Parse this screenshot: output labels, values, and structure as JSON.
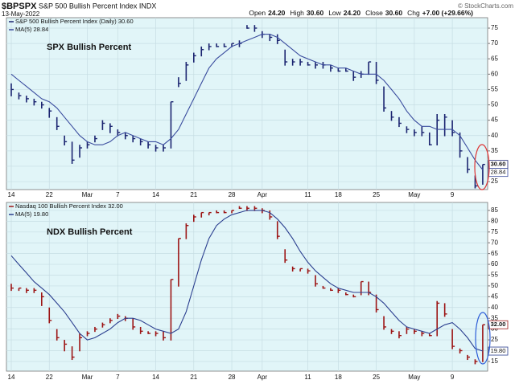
{
  "header": {
    "symbol": "$BPSPX",
    "description": "S&P 500 Bullish Percent Index INDX",
    "date": "13-May-2022",
    "credit": "© StockCharts.com",
    "quote": [
      {
        "label": "Open",
        "value": "24.20"
      },
      {
        "label": "High",
        "value": "30.60"
      },
      {
        "label": "Low",
        "value": "24.20"
      },
      {
        "label": "Close",
        "value": "30.60"
      },
      {
        "label": "Chg",
        "value": "+7.00 (+29.66%)"
      }
    ]
  },
  "chart_data": [
    {
      "type": "ohlc",
      "annotation": "SPX Bullish Percent",
      "annotation_color": "#1c3fd0",
      "background": "#e1f5f8",
      "grid": true,
      "categories": [
        "14",
        null,
        null,
        null,
        null,
        "22",
        null,
        null,
        null,
        null,
        "Mar",
        null,
        null,
        null,
        "7",
        null,
        null,
        null,
        null,
        "14",
        null,
        null,
        null,
        null,
        "21",
        null,
        null,
        null,
        null,
        "28",
        null,
        null,
        null,
        "Apr",
        null,
        null,
        null,
        null,
        null,
        "11",
        null,
        null,
        null,
        "18",
        null,
        null,
        null,
        null,
        "25",
        null,
        null,
        null,
        null,
        "May",
        null,
        null,
        null,
        null,
        "9",
        null,
        null,
        null,
        null
      ],
      "ylim": [
        22.4,
        78.4
      ],
      "yticks": [
        25,
        30,
        35,
        40,
        45,
        50,
        55,
        60,
        65,
        70,
        75
      ],
      "series": [
        {
          "name": "S&P 500 Bullish Percent Index (Daily) 30.60",
          "color": "#1b2470",
          "last_label": "30.60",
          "high": [
            57,
            54,
            53,
            52,
            51,
            49,
            46,
            40,
            38,
            37,
            38,
            40,
            45,
            44,
            42,
            41,
            40,
            39,
            38,
            37,
            37,
            51,
            59,
            64,
            67,
            69,
            70,
            70,
            70,
            70,
            71,
            76,
            76,
            74,
            73,
            73,
            68,
            65,
            65,
            64,
            64,
            64,
            63,
            62,
            62,
            61,
            61,
            64,
            64,
            56,
            48,
            46,
            43,
            42,
            43,
            41,
            47,
            47,
            45,
            41,
            33,
            27,
            30.6
          ],
          "low": [
            53,
            52,
            51,
            50,
            49,
            46,
            42,
            37,
            31,
            33,
            36,
            38,
            42,
            41,
            40,
            39,
            38,
            37,
            36,
            35,
            35,
            36,
            56,
            58,
            64,
            66,
            68,
            69,
            69,
            69,
            69,
            75,
            74,
            72,
            71,
            70,
            63,
            63,
            63,
            63,
            62,
            62,
            61,
            61,
            61,
            58,
            59,
            60,
            57,
            48,
            45,
            43,
            41,
            40,
            40,
            37,
            37,
            40,
            40,
            33,
            28,
            23,
            24.2
          ],
          "close": [
            55,
            53,
            52,
            51,
            50,
            48,
            43,
            38,
            32,
            36,
            37,
            39,
            44,
            43,
            41,
            40,
            39,
            38,
            37,
            36,
            36,
            51,
            57,
            63,
            66,
            68,
            69,
            69,
            69,
            70,
            70,
            75,
            75,
            73,
            72,
            71,
            64,
            64,
            64,
            63,
            63,
            63,
            62,
            61,
            61,
            59,
            60,
            64,
            58,
            49,
            46,
            44,
            42,
            41,
            41,
            37,
            45,
            46,
            41,
            35,
            29,
            23.6,
            30.6
          ]
        },
        {
          "name": "MA(5) 28.84",
          "color": "#3a4c9e",
          "last_label": "28.84",
          "values": [
            60,
            58,
            56,
            54,
            52,
            51,
            49,
            46,
            43,
            40,
            38,
            37,
            37,
            38,
            40,
            41,
            40,
            39,
            38,
            38,
            37,
            39,
            42,
            47,
            52,
            57,
            62,
            65,
            67,
            69,
            70,
            71,
            72,
            73,
            73,
            72,
            70,
            68,
            66,
            65,
            64,
            63,
            63,
            62,
            62,
            61,
            60,
            60,
            60,
            58,
            55,
            52,
            48,
            45,
            43,
            43,
            42,
            42,
            42,
            40,
            36,
            32,
            28.84
          ]
        }
      ]
    },
    {
      "type": "ohlc",
      "annotation": "NDX Bullish Percent",
      "annotation_color": "#d42020",
      "background": "#e1f5f8",
      "grid": true,
      "categories": [
        "14",
        null,
        null,
        null,
        null,
        "22",
        null,
        null,
        null,
        null,
        "Mar",
        null,
        null,
        null,
        "7",
        null,
        null,
        null,
        null,
        "14",
        null,
        null,
        null,
        null,
        "21",
        null,
        null,
        null,
        null,
        "28",
        null,
        null,
        null,
        "Apr",
        null,
        null,
        null,
        null,
        null,
        "11",
        null,
        null,
        null,
        "18",
        null,
        null,
        null,
        null,
        "25",
        null,
        null,
        null,
        null,
        "May",
        null,
        null,
        null,
        null,
        "9",
        null,
        null,
        null,
        null
      ],
      "ylim": [
        10.5,
        88.7
      ],
      "yticks": [
        15,
        20,
        25,
        30,
        35,
        40,
        45,
        50,
        55,
        60,
        65,
        70,
        75,
        80,
        85
      ],
      "series": [
        {
          "name": "Nasdaq 100 Bullish Percent Index 32.00",
          "color": "#9c1414",
          "last_label": "32.00",
          "high": [
            51,
            49,
            49,
            49,
            47,
            40,
            30,
            25,
            22,
            28,
            29,
            31,
            33,
            35,
            37,
            36,
            35,
            31,
            29,
            29,
            29,
            53,
            72,
            79,
            83,
            84,
            84,
            85,
            85,
            85,
            87,
            87,
            87,
            86,
            85,
            80,
            67,
            59,
            58,
            58,
            55,
            50,
            49,
            49,
            47,
            46,
            52,
            52,
            46,
            36,
            30,
            29,
            31,
            30,
            29,
            28,
            43,
            42,
            30,
            21,
            18,
            16,
            32
          ],
          "low": [
            48,
            48,
            47,
            47,
            41,
            33,
            25,
            20,
            16,
            20,
            27,
            29,
            31,
            33,
            35,
            34,
            30,
            28,
            28,
            27,
            25,
            25,
            50,
            72,
            80,
            82,
            83,
            84,
            84,
            84,
            86,
            85,
            85,
            84,
            81,
            72,
            61,
            57,
            57,
            56,
            50,
            49,
            48,
            47,
            46,
            45,
            46,
            46,
            38,
            30,
            28,
            26,
            28,
            28,
            27,
            27,
            27,
            36,
            21,
            19,
            16,
            14,
            15
          ],
          "close": [
            49,
            49,
            48,
            48,
            45,
            34,
            26,
            23,
            17,
            26,
            28,
            30,
            32,
            34,
            36,
            35,
            31,
            29,
            28,
            28,
            26,
            53,
            72,
            78,
            82,
            84,
            84,
            84,
            84,
            85,
            86,
            86,
            86,
            85,
            82,
            73,
            62,
            58,
            58,
            57,
            51,
            49,
            48,
            48,
            46,
            45,
            52,
            47,
            39,
            31,
            29,
            27,
            30,
            29,
            28,
            27,
            42,
            37,
            22,
            20,
            17,
            15,
            32
          ]
        },
        {
          "name": "MA(5) 19.80",
          "color": "#2b3f8f",
          "last_label": "19.80",
          "values": [
            64,
            60,
            56,
            52,
            49,
            46,
            42,
            38,
            33,
            28,
            25,
            26,
            28,
            30,
            33,
            35,
            35,
            34,
            32,
            30,
            29,
            28,
            30,
            38,
            50,
            62,
            72,
            78,
            81,
            83,
            84,
            85,
            85,
            85,
            84,
            81,
            77,
            72,
            66,
            61,
            57,
            54,
            51,
            49,
            48,
            47,
            47,
            47,
            45,
            42,
            38,
            34,
            31,
            30,
            29,
            28,
            30,
            32,
            33,
            30,
            26,
            21,
            19.8
          ]
        }
      ]
    }
  ]
}
